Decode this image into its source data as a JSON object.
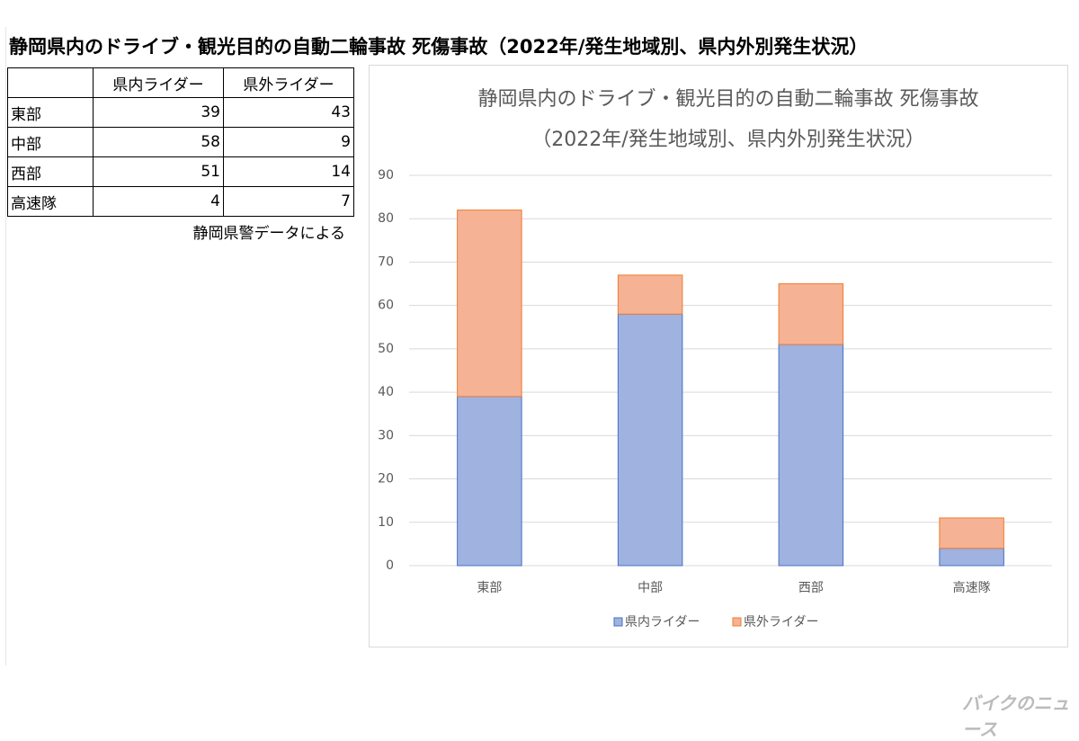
{
  "heading": "静岡県内のドライブ・観光目的の自動二輪事故 死傷事故（2022年/発生地域別、県内外別発生状況）",
  "table": {
    "columns": [
      "県内ライダー",
      "県外ライダー"
    ],
    "rows": [
      [
        "東部",
        39,
        43
      ],
      [
        "中部",
        58,
        9
      ],
      [
        "西部",
        51,
        14
      ],
      [
        "高速隊",
        4,
        7
      ]
    ]
  },
  "note": "静岡県警データによる",
  "watermark": "バイクのニュース",
  "chart_data": {
    "type": "bar",
    "stacked": true,
    "title": "静岡県内のドライブ・観光目的の自動二輪事故 死傷事故（2022年/発生地域別、県内外別発生状況）",
    "categories": [
      "東部",
      "中部",
      "西部",
      "高速隊"
    ],
    "series": [
      {
        "name": "県内ライダー",
        "color": "#9fb2e0",
        "values": [
          39,
          58,
          51,
          4
        ]
      },
      {
        "name": "県外ライダー",
        "color": "#f6b294",
        "values": [
          43,
          9,
          14,
          7
        ]
      }
    ],
    "ylim": [
      0,
      90
    ],
    "yticks": [
      0,
      10,
      20,
      30,
      40,
      50,
      60,
      70,
      80,
      90
    ],
    "grid": true,
    "legend": "bottom"
  }
}
